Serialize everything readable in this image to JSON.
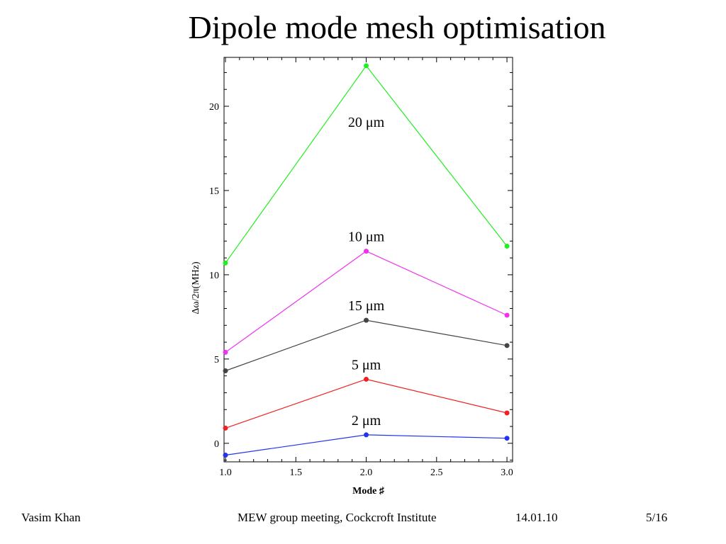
{
  "slide": {
    "title": "Dipole mode mesh optimisation",
    "footer": {
      "author": "Vasim Khan",
      "event": "MEW group meeting, Cockcroft Institute",
      "date": "14.01.10",
      "page": "5/16"
    }
  },
  "chart_data": {
    "type": "line",
    "title": "",
    "xlabel": "Mode ♯",
    "ylabel": "Δω/2π(MHz)",
    "xlim": [
      0.99,
      3.04
    ],
    "ylim": [
      -1.1,
      22.9
    ],
    "x_ticks": [
      "1.0",
      "1.5",
      "2.0",
      "2.5",
      "3.0"
    ],
    "y_ticks": [
      "0",
      "5",
      "10",
      "15",
      "20"
    ],
    "grid": false,
    "legend": "none",
    "x": [
      1.0,
      2.0,
      3.0
    ],
    "series": [
      {
        "name": "20 μm",
        "color": "#22ee22",
        "values": [
          10.7,
          22.4,
          11.7
        ]
      },
      {
        "name": "10 μm",
        "color": "#ee33ee",
        "values": [
          5.4,
          11.4,
          7.6
        ]
      },
      {
        "name": "15 μm",
        "color": "#444444",
        "values": [
          4.3,
          7.3,
          5.8
        ]
      },
      {
        "name": "5 μm",
        "color": "#ee2222",
        "values": [
          0.9,
          3.8,
          1.8
        ]
      },
      {
        "name": "2 μm",
        "color": "#2233ee",
        "values": [
          -0.7,
          0.5,
          0.3
        ]
      }
    ]
  }
}
